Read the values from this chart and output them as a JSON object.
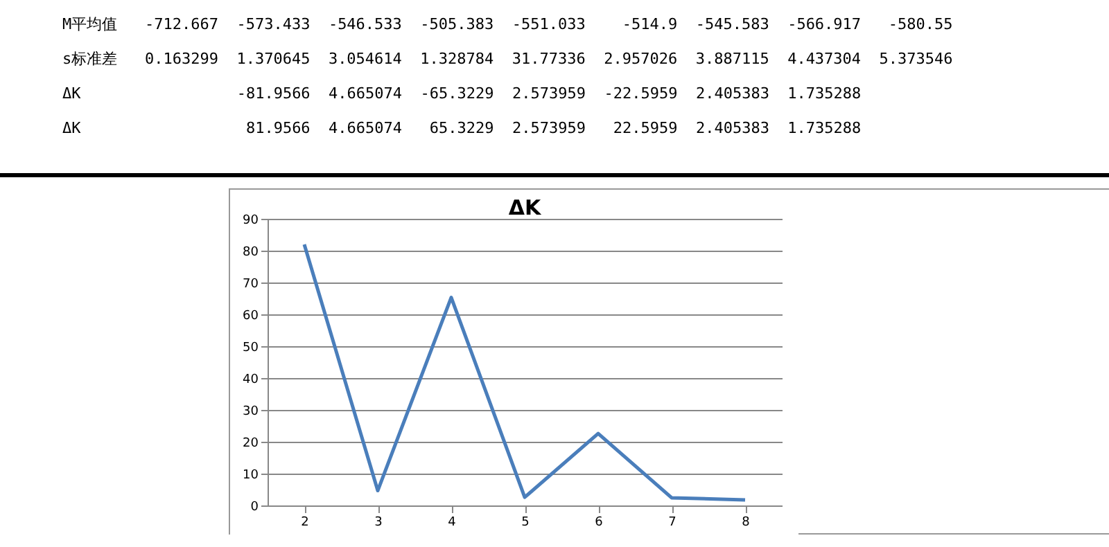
{
  "chart_data": [
    {
      "type": "other",
      "annotations": [
        "M平均值   -712.667  -573.433  -546.533  -505.383  -551.033    -514.9  -545.583  -566.917   -580.55",
        "s标准差   0.163299  1.370645  3.054614  1.328784  31.77336  2.957026  3.887115  4.437304  5.373546",
        "ΔK                 -81.9566  4.665074  -65.3229  2.573959  -22.5959  2.405383  1.735288",
        "ΔK                  81.9566  4.665074   65.3229  2.573959   22.5959  2.405383  1.735288"
      ]
    },
    {
      "type": "line",
      "title": "ΔK",
      "categories": [
        "2",
        "3",
        "4",
        "5",
        "6",
        "7",
        "8"
      ],
      "values": [
        81.9566,
        4.665074,
        65.3229,
        2.573959,
        22.5959,
        2.405383,
        1.735288
      ],
      "color": "#4a7ebb",
      "ylim": [
        0,
        90
      ],
      "yticks": [
        0,
        10,
        20,
        30,
        40,
        50,
        60,
        70,
        80,
        90
      ],
      "grid": "y"
    }
  ]
}
